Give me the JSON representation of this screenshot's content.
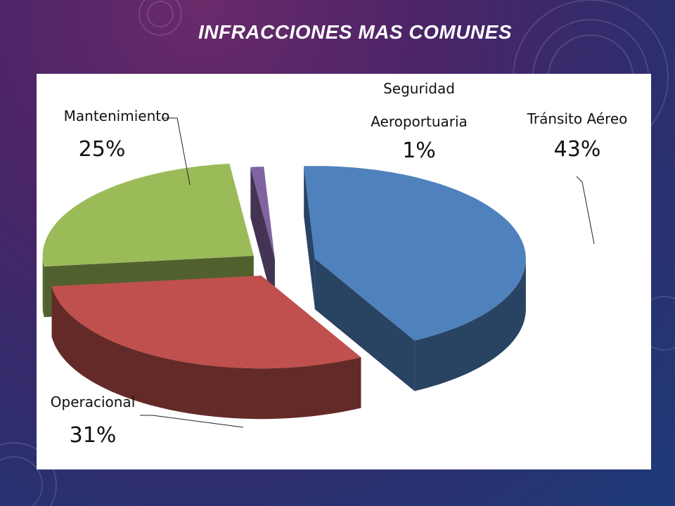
{
  "slide": {
    "title": "INFRACCIONES MAS COMUNES"
  },
  "colors": {
    "transito": "#4f81bd",
    "operacional": "#c0504d",
    "mantenimiento": "#9bbb59",
    "seguridad": "#8064a2"
  },
  "chart_data": {
    "type": "pie",
    "variant": "3d-exploded",
    "title": "",
    "slices": [
      {
        "label_lines": [
          "Tránsito Aéreo"
        ],
        "value": 43,
        "value_label": "43%",
        "color": "#4f81bd"
      },
      {
        "label_lines": [
          "Operacional"
        ],
        "value": 31,
        "value_label": "31%",
        "color": "#c0504d"
      },
      {
        "label_lines": [
          "Mantenimiento"
        ],
        "value": 25,
        "value_label": "25%",
        "color": "#9bbb59"
      },
      {
        "label_lines": [
          "Seguridad",
          "Aeroportuaria"
        ],
        "value": 1,
        "value_label": "1%",
        "color": "#8064a2"
      }
    ],
    "legend": "none"
  }
}
